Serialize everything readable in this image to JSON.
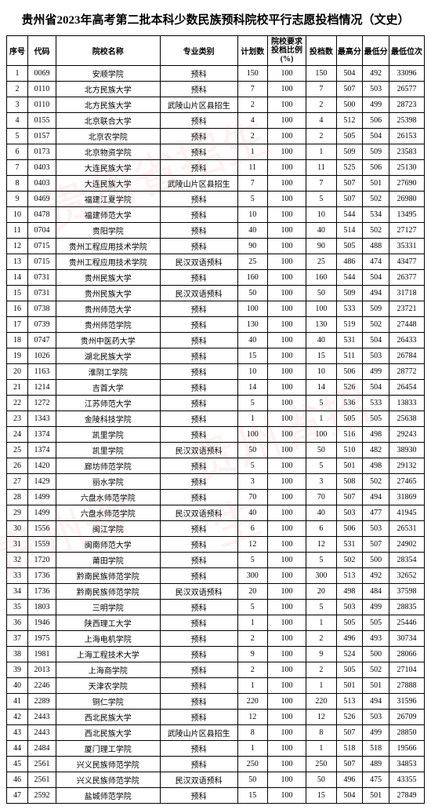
{
  "title": "贵州省2023年高考第二批本科少数民族预科院校平行志愿投档情况（文史）",
  "headers": {
    "seq": "序号",
    "code": "代码",
    "name": "院校名称",
    "type": "专业类别",
    "plan": "计划数",
    "ratio": "院校要求投档比例(%)",
    "cast": "投档数",
    "max": "最高分",
    "min": "最低分",
    "rank": "最低位次"
  },
  "rows": [
    {
      "seq": "1",
      "code": "0069",
      "name": "安顺学院",
      "type": "预科",
      "plan": "150",
      "ratio": "100",
      "cast": "150",
      "max": "504",
      "min": "492",
      "rank": "33096"
    },
    {
      "seq": "2",
      "code": "0110",
      "name": "北方民族大学",
      "type": "预科",
      "plan": "7",
      "ratio": "100",
      "cast": "7",
      "max": "507",
      "min": "503",
      "rank": "26577"
    },
    {
      "seq": "3",
      "code": "0110",
      "name": "北方民族大学",
      "type": "武陵山片区县招生",
      "plan": "2",
      "ratio": "100",
      "cast": "2",
      "max": "500",
      "min": "499",
      "rank": "28723"
    },
    {
      "seq": "4",
      "code": "0155",
      "name": "北京联合大学",
      "type": "预科",
      "plan": "4",
      "ratio": "100",
      "cast": "4",
      "max": "512",
      "min": "506",
      "rank": "25398"
    },
    {
      "seq": "5",
      "code": "0157",
      "name": "北京农学院",
      "type": "预科",
      "plan": "2",
      "ratio": "100",
      "cast": "2",
      "max": "505",
      "min": "504",
      "rank": "26153"
    },
    {
      "seq": "6",
      "code": "0173",
      "name": "北京物资学院",
      "type": "预科",
      "plan": "1",
      "ratio": "100",
      "cast": "1",
      "max": "509",
      "min": "509",
      "rank": "23583"
    },
    {
      "seq": "7",
      "code": "0403",
      "name": "大连民族大学",
      "type": "预科",
      "plan": "11",
      "ratio": "100",
      "cast": "11",
      "max": "525",
      "min": "506",
      "rank": "25130"
    },
    {
      "seq": "8",
      "code": "0403",
      "name": "大连民族大学",
      "type": "武陵山片区县招生",
      "plan": "7",
      "ratio": "100",
      "cast": "7",
      "max": "507",
      "min": "501",
      "rank": "27690"
    },
    {
      "seq": "9",
      "code": "0469",
      "name": "福建江夏学院",
      "type": "预科",
      "plan": "5",
      "ratio": "100",
      "cast": "5",
      "max": "507",
      "min": "502",
      "rank": "26980"
    },
    {
      "seq": "10",
      "code": "0478",
      "name": "福建师范大学",
      "type": "预科",
      "plan": "10",
      "ratio": "100",
      "cast": "10",
      "max": "544",
      "min": "534",
      "rank": "13495"
    },
    {
      "seq": "11",
      "code": "0704",
      "name": "贵阳学院",
      "type": "预科",
      "plan": "40",
      "ratio": "100",
      "cast": "40",
      "max": "514",
      "min": "502",
      "rank": "27127"
    },
    {
      "seq": "12",
      "code": "0715",
      "name": "贵州工程应用技术学院",
      "type": "预科",
      "plan": "90",
      "ratio": "100",
      "cast": "90",
      "max": "505",
      "min": "488",
      "rank": "35331"
    },
    {
      "seq": "13",
      "code": "0715",
      "name": "贵州工程应用技术学院",
      "type": "民汉双语预科",
      "plan": "25",
      "ratio": "100",
      "cast": "25",
      "max": "486",
      "min": "474",
      "rank": "43477"
    },
    {
      "seq": "14",
      "code": "0731",
      "name": "贵州民族大学",
      "type": "预科",
      "plan": "160",
      "ratio": "100",
      "cast": "160",
      "max": "544",
      "min": "504",
      "rank": "26377"
    },
    {
      "seq": "15",
      "code": "0731",
      "name": "贵州民族大学",
      "type": "民汉双语预科",
      "plan": "50",
      "ratio": "100",
      "cast": "50",
      "max": "509",
      "min": "494",
      "rank": "31718"
    },
    {
      "seq": "16",
      "code": "0738",
      "name": "贵州师范大学",
      "type": "预科",
      "plan": "100",
      "ratio": "100",
      "cast": "100",
      "max": "533",
      "min": "509",
      "rank": "23721"
    },
    {
      "seq": "17",
      "code": "0739",
      "name": "贵州师范学院",
      "type": "预科",
      "plan": "130",
      "ratio": "100",
      "cast": "130",
      "max": "519",
      "min": "502",
      "rank": "27448"
    },
    {
      "seq": "18",
      "code": "0747",
      "name": "贵州中医药大学",
      "type": "预科",
      "plan": "40",
      "ratio": "100",
      "cast": "40",
      "max": "531",
      "min": "504",
      "rank": "26433"
    },
    {
      "seq": "19",
      "code": "1026",
      "name": "湖北民族大学",
      "type": "预科",
      "plan": "15",
      "ratio": "100",
      "cast": "15",
      "max": "511",
      "min": "503",
      "rank": "26784"
    },
    {
      "seq": "20",
      "code": "1163",
      "name": "淮阴工学院",
      "type": "预科",
      "plan": "10",
      "ratio": "100",
      "cast": "10",
      "max": "506",
      "min": "499",
      "rank": "28772"
    },
    {
      "seq": "21",
      "code": "1214",
      "name": "吉首大学",
      "type": "预科",
      "plan": "14",
      "ratio": "100",
      "cast": "14",
      "max": "526",
      "min": "504",
      "rank": "26454"
    },
    {
      "seq": "22",
      "code": "1272",
      "name": "江苏师范大学",
      "type": "预科",
      "plan": "5",
      "ratio": "100",
      "cast": "5",
      "max": "536",
      "min": "533",
      "rank": "13833"
    },
    {
      "seq": "23",
      "code": "1343",
      "name": "金陵科技学院",
      "type": "预科",
      "plan": "1",
      "ratio": "100",
      "cast": "1",
      "max": "505",
      "min": "505",
      "rank": "25638"
    },
    {
      "seq": "24",
      "code": "1374",
      "name": "凯里学院",
      "type": "预科",
      "plan": "100",
      "ratio": "100",
      "cast": "100",
      "max": "516",
      "min": "498",
      "rank": "29243"
    },
    {
      "seq": "25",
      "code": "1374",
      "name": "凯里学院",
      "type": "民汉双语预科",
      "plan": "50",
      "ratio": "100",
      "cast": "50",
      "max": "510",
      "min": "482",
      "rank": "38930"
    },
    {
      "seq": "26",
      "code": "1420",
      "name": "廊坊师范学院",
      "type": "预科",
      "plan": "5",
      "ratio": "100",
      "cast": "5",
      "max": "501",
      "min": "498",
      "rank": "29132"
    },
    {
      "seq": "27",
      "code": "1429",
      "name": "丽水学院",
      "type": "预科",
      "plan": "3",
      "ratio": "100",
      "cast": "3",
      "max": "508",
      "min": "502",
      "rank": "27465"
    },
    {
      "seq": "28",
      "code": "1499",
      "name": "六盘水师范学院",
      "type": "预科",
      "plan": "70",
      "ratio": "100",
      "cast": "70",
      "max": "507",
      "min": "494",
      "rank": "31869"
    },
    {
      "seq": "29",
      "code": "1499",
      "name": "六盘水师范学院",
      "type": "民汉双语预科",
      "plan": "40",
      "ratio": "100",
      "cast": "40",
      "max": "503",
      "min": "477",
      "rank": "41945"
    },
    {
      "seq": "30",
      "code": "1556",
      "name": "闽江学院",
      "type": "预科",
      "plan": "6",
      "ratio": "100",
      "cast": "6",
      "max": "506",
      "min": "503",
      "rank": "26531"
    },
    {
      "seq": "31",
      "code": "1559",
      "name": "闽南师范大学",
      "type": "预科",
      "plan": "12",
      "ratio": "100",
      "cast": "12",
      "max": "531",
      "min": "507",
      "rank": "24902"
    },
    {
      "seq": "32",
      "code": "1720",
      "name": "莆田学院",
      "type": "预科",
      "plan": "5",
      "ratio": "100",
      "cast": "5",
      "max": "502",
      "min": "500",
      "rank": "28354"
    },
    {
      "seq": "33",
      "code": "1736",
      "name": "黔南民族师范学院",
      "type": "预科",
      "plan": "300",
      "ratio": "100",
      "cast": "300",
      "max": "513",
      "min": "492",
      "rank": "32652"
    },
    {
      "seq": "34",
      "code": "1736",
      "name": "黔南民族师范学院",
      "type": "民汉双语预科",
      "plan": "20",
      "ratio": "100",
      "cast": "20",
      "max": "498",
      "min": "484",
      "rank": "37598"
    },
    {
      "seq": "35",
      "code": "1803",
      "name": "三明学院",
      "type": "预科",
      "plan": "5",
      "ratio": "100",
      "cast": "5",
      "max": "503",
      "min": "499",
      "rank": "28835"
    },
    {
      "seq": "36",
      "code": "1946",
      "name": "陕西理工大学",
      "type": "预科",
      "plan": "1",
      "ratio": "100",
      "cast": "1",
      "max": "505",
      "min": "505",
      "rank": "25446"
    },
    {
      "seq": "37",
      "code": "1975",
      "name": "上海电机学院",
      "type": "预科",
      "plan": "2",
      "ratio": "100",
      "cast": "2",
      "max": "496",
      "min": "493",
      "rank": "30734"
    },
    {
      "seq": "38",
      "code": "1981",
      "name": "上海工程技术大学",
      "type": "预科",
      "plan": "9",
      "ratio": "100",
      "cast": "9",
      "max": "524",
      "min": "500",
      "rank": "28066"
    },
    {
      "seq": "39",
      "code": "2013",
      "name": "上海商学院",
      "type": "预科",
      "plan": "2",
      "ratio": "100",
      "cast": "2",
      "max": "505",
      "min": "502",
      "rank": "27104"
    },
    {
      "seq": "40",
      "code": "2246",
      "name": "天津农学院",
      "type": "预科",
      "plan": "1",
      "ratio": "100",
      "cast": "1",
      "max": "501",
      "min": "501",
      "rank": "27888"
    },
    {
      "seq": "41",
      "code": "2289",
      "name": "铜仁学院",
      "type": "预科",
      "plan": "220",
      "ratio": "100",
      "cast": "220",
      "max": "513",
      "min": "494",
      "rank": "31596"
    },
    {
      "seq": "42",
      "code": "2443",
      "name": "西北民族大学",
      "type": "预科",
      "plan": "12",
      "ratio": "100",
      "cast": "12",
      "max": "526",
      "min": "503",
      "rank": "26709"
    },
    {
      "seq": "43",
      "code": "2443",
      "name": "西北民族大学",
      "type": "武陵山片区县招生",
      "plan": "8",
      "ratio": "100",
      "cast": "8",
      "max": "507",
      "min": "499",
      "rank": "28850"
    },
    {
      "seq": "44",
      "code": "2484",
      "name": "厦门理工学院",
      "type": "预科",
      "plan": "1",
      "ratio": "100",
      "cast": "1",
      "max": "518",
      "min": "518",
      "rank": "19566"
    },
    {
      "seq": "45",
      "code": "2561",
      "name": "兴义民族师范学院",
      "type": "预科",
      "plan": "250",
      "ratio": "100",
      "cast": "250",
      "max": "507",
      "min": "489",
      "rank": "34853"
    },
    {
      "seq": "46",
      "code": "2561",
      "name": "兴义民族师范学院",
      "type": "民汉双语预科",
      "plan": "50",
      "ratio": "100",
      "cast": "50",
      "max": "496",
      "min": "475",
      "rank": "43355"
    },
    {
      "seq": "47",
      "code": "2592",
      "name": "盐城师范学院",
      "type": "预科",
      "plan": "15",
      "ratio": "100",
      "cast": "15",
      "max": "504",
      "min": "501",
      "rank": "27849"
    }
  ]
}
